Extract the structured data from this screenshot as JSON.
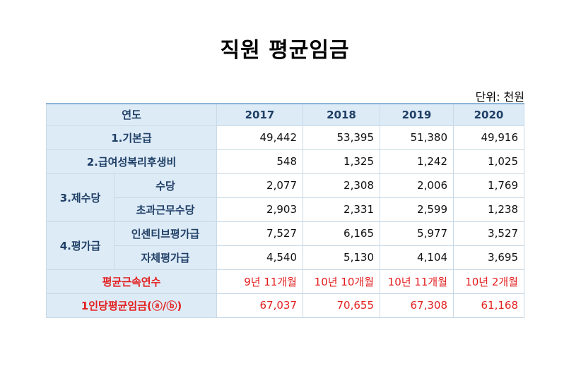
{
  "title": "직원 평균임금",
  "unit": "단위: 천원",
  "table": {
    "header": {
      "label": "연도",
      "years": [
        "2017",
        "2018",
        "2019",
        "2020"
      ]
    },
    "rows": {
      "basic_pay": {
        "label": "1.기본급",
        "values": [
          "49,442",
          "53,395",
          "51,380",
          "49,916"
        ]
      },
      "welfare": {
        "label": "2.급여성복리후생비",
        "values": [
          "548",
          "1,325",
          "1,242",
          "1,025"
        ]
      },
      "allowance": {
        "label": "3.제수당",
        "allowance": {
          "label": "수당",
          "values": [
            "2,077",
            "2,308",
            "2,006",
            "1,769"
          ]
        },
        "overtime": {
          "label": "초과근무수당",
          "values": [
            "2,903",
            "2,331",
            "2,599",
            "1,238"
          ]
        }
      },
      "evaluation": {
        "label": "4.평가급",
        "incentive": {
          "label": "인센티브평가급",
          "values": [
            "7,527",
            "6,165",
            "5,977",
            "3,527"
          ]
        },
        "internal": {
          "label": "자체평가급",
          "values": [
            "4,540",
            "5,130",
            "4,104",
            "3,695"
          ]
        }
      },
      "tenure": {
        "label": "평균근속연수",
        "values": [
          "9년 11개월",
          "10년 10개월",
          "10년 11개월",
          "10년 2개월"
        ]
      },
      "avg_wage": {
        "label": "1인당평균임금(ⓐ/ⓑ)",
        "values": [
          "67,037",
          "70,655",
          "67,308",
          "61,168"
        ]
      }
    }
  },
  "colors": {
    "header_bg": "#ddebf7",
    "header_text": "#1f3f66",
    "highlight": "#e31e1e",
    "border": "#c9d9e6"
  }
}
